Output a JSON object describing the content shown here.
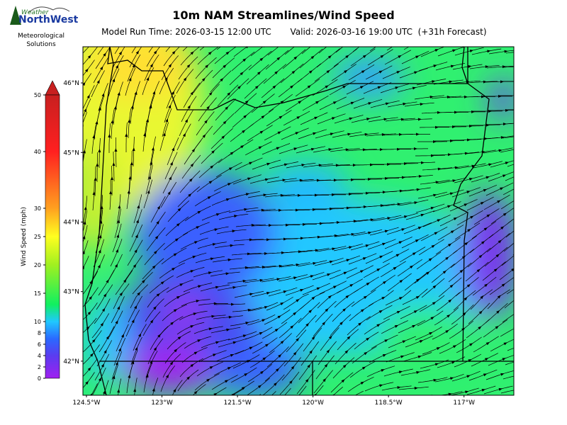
{
  "logo": {
    "top": "Weather",
    "name": "NorthWest",
    "line1": "Meteorological",
    "line2": "Solutions"
  },
  "title": "10m NAM Streamlines/Wind Speed",
  "run_time": "Model Run Time: 2026-03-15 12:00 UTC",
  "valid_time": "Valid: 2026-03-16 19:00 UTC  (+31h Forecast)",
  "colorbar": {
    "label": "Wind Speed (mph)",
    "lim": [
      0,
      50
    ],
    "ticks": [
      0,
      2,
      4,
      6,
      8,
      10,
      15,
      20,
      25,
      30,
      40,
      50
    ]
  },
  "map": {
    "xlim": [
      -124.57,
      -116.01
    ],
    "ylim": [
      41.51,
      46.52
    ],
    "xticks": [
      {
        "value": -124.5,
        "label": "124.5°W"
      },
      {
        "value": -123,
        "label": "123°W"
      },
      {
        "value": -121.5,
        "label": "121.5°W"
      },
      {
        "value": -120,
        "label": "120°W"
      },
      {
        "value": -118.5,
        "label": "118.5°W"
      },
      {
        "value": -117,
        "label": "117°W"
      }
    ],
    "yticks": [
      {
        "value": 42,
        "label": "42°N"
      },
      {
        "value": 43,
        "label": "43°N"
      },
      {
        "value": 44,
        "label": "44°N"
      },
      {
        "value": 45,
        "label": "45°N"
      },
      {
        "value": 46,
        "label": "46°N"
      }
    ]
  }
}
